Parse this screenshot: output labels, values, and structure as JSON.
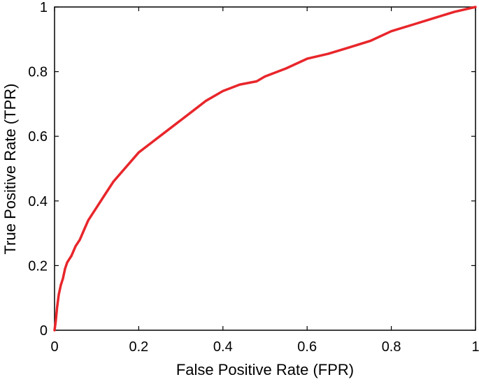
{
  "chart_data": {
    "type": "line",
    "title": "",
    "xlabel": "False Positive Rate (FPR)",
    "ylabel": "True Positive Rate (TPR)",
    "xlim": [
      0,
      1
    ],
    "ylim": [
      0,
      1
    ],
    "xticks": [
      0,
      0.2,
      0.4,
      0.6,
      0.8,
      1
    ],
    "yticks": [
      0,
      0.2,
      0.4,
      0.6,
      0.8,
      1
    ],
    "xtick_labels": [
      "0",
      "0.2",
      "0.4",
      "0.6",
      "0.8",
      "1"
    ],
    "ytick_labels": [
      "0",
      "0.2",
      "0.4",
      "0.6",
      "0.8",
      "1"
    ],
    "grid": false,
    "legend": "none",
    "line_color": "#e8262b",
    "series": [
      {
        "x": [
          0,
          0.003,
          0.006,
          0.01,
          0.015,
          0.02,
          0.025,
          0.03,
          0.04,
          0.05,
          0.06,
          0.07,
          0.08,
          0.09,
          0.1,
          0.12,
          0.14,
          0.16,
          0.18,
          0.2,
          0.22,
          0.25,
          0.28,
          0.3,
          0.33,
          0.36,
          0.4,
          0.44,
          0.48,
          0.5,
          0.55,
          0.6,
          0.65,
          0.7,
          0.75,
          0.8,
          0.85,
          0.9,
          0.95,
          1.0
        ],
        "y": [
          0,
          0.03,
          0.07,
          0.11,
          0.14,
          0.16,
          0.19,
          0.21,
          0.23,
          0.26,
          0.28,
          0.31,
          0.34,
          0.36,
          0.38,
          0.42,
          0.46,
          0.49,
          0.52,
          0.55,
          0.57,
          0.6,
          0.63,
          0.65,
          0.68,
          0.71,
          0.74,
          0.76,
          0.77,
          0.785,
          0.81,
          0.84,
          0.855,
          0.875,
          0.895,
          0.925,
          0.945,
          0.965,
          0.985,
          1.0
        ]
      }
    ]
  }
}
